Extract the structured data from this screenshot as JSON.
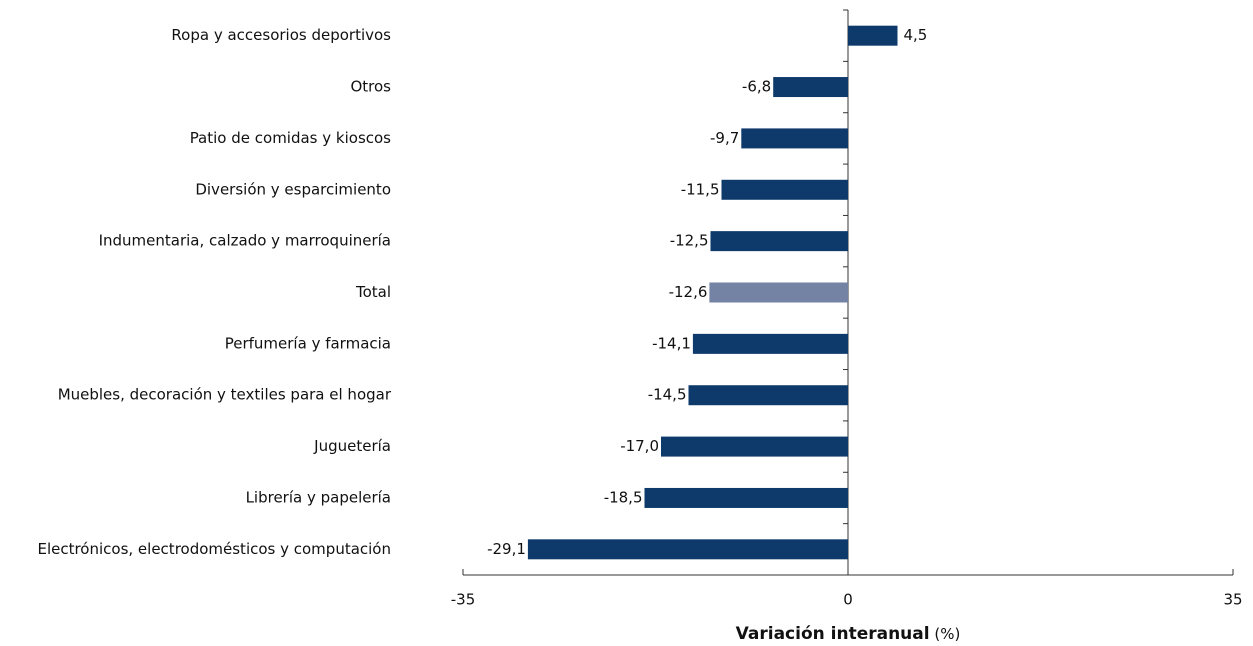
{
  "chart_data": {
    "type": "barh",
    "categories": [
      "Ropa y accesorios deportivos",
      "Otros",
      "Patio de comidas y kioscos",
      "Diversión y esparcimiento",
      "Indumentaria, calzado y marroquinería",
      "Total",
      "Perfumería y farmacia",
      "Muebles, decoración y textiles para el hogar",
      "Juguetería",
      "Librería y papelería",
      "Electrónicos, electrodomésticos y computación"
    ],
    "values": [
      4.5,
      -6.8,
      -9.7,
      -11.5,
      -12.5,
      -12.6,
      -14.1,
      -14.5,
      -17.0,
      -18.5,
      -29.1
    ],
    "value_labels": [
      "4,5",
      "-6,8",
      "-9,7",
      "-11,5",
      "-12,5",
      "-12,6",
      "-14,1",
      "-14,5",
      "-17,0",
      "-18,5",
      "-29,1"
    ],
    "colors": [
      "#0d3a6b",
      "#0d3a6b",
      "#0d3a6b",
      "#0d3a6b",
      "#0d3a6b",
      "#7482a3",
      "#0d3a6b",
      "#0d3a6b",
      "#0d3a6b",
      "#0d3a6b",
      "#0d3a6b"
    ],
    "xlim": [
      -35,
      35
    ],
    "xticks": [
      -35,
      0,
      35
    ],
    "xlabel": {
      "text": "Variación interanual",
      "unit": "(%)"
    }
  }
}
